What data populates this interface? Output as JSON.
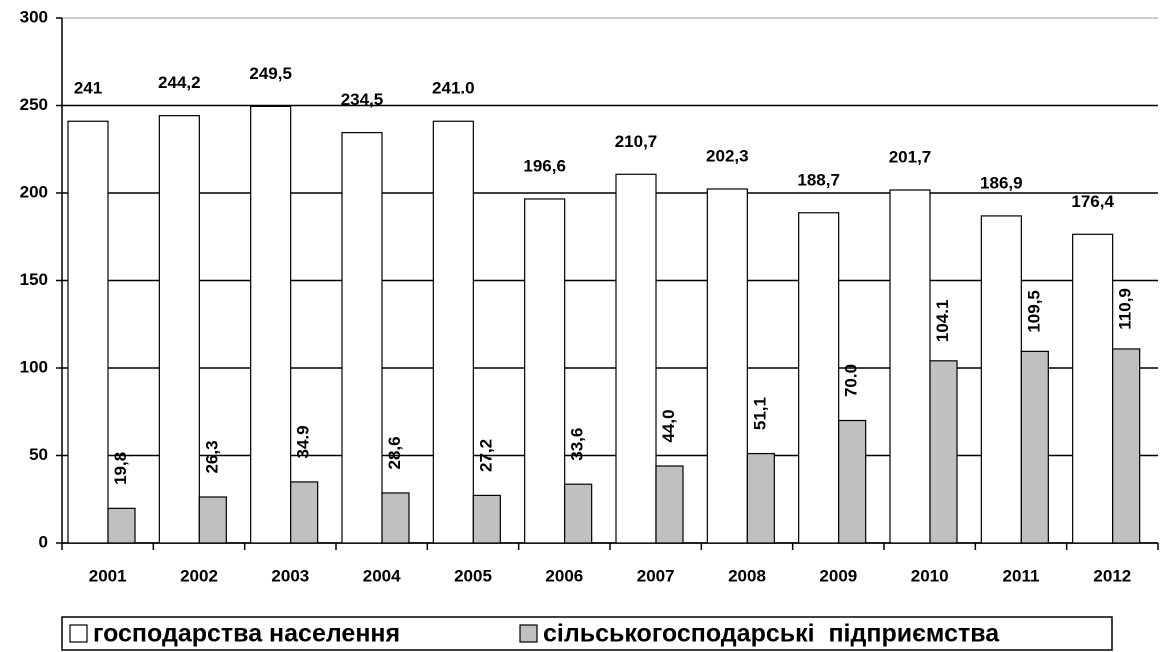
{
  "chart_data": {
    "type": "bar",
    "categories": [
      "2001",
      "2002",
      "2003",
      "2004",
      "2005",
      "2006",
      "2007",
      "2008",
      "2009",
      "2010",
      "2011",
      "2012"
    ],
    "series": [
      {
        "name": "господарства населення",
        "color": "#ffffff",
        "values": [
          241,
          244.2,
          249.5,
          234.5,
          241.0,
          196.6,
          210.7,
          202.3,
          188.7,
          201.7,
          186.9,
          176.4
        ],
        "value_labels": [
          "241",
          "244,2",
          "249,5",
          "234,5",
          "241.0",
          "196,6",
          "210,7",
          "202,3",
          "188,7",
          "201,7",
          "186,9",
          "176,4"
        ]
      },
      {
        "name": "сільськогосподарські  підприємства",
        "color": "#c0c0c0",
        "values": [
          19.8,
          26.3,
          34.9,
          28.6,
          27.2,
          33.6,
          44.0,
          51.1,
          70.0,
          104.1,
          109.5,
          110.9
        ],
        "value_labels": [
          "19,8",
          "26,3",
          "34.9",
          "28,6",
          "27,2",
          "33,6",
          "44,0",
          "51,1",
          "70.0",
          "104.1",
          "109,5",
          "110,9"
        ]
      }
    ],
    "ylim": [
      0,
      300
    ],
    "yticks": [
      0,
      50,
      100,
      150,
      200,
      250,
      300
    ],
    "grid": true,
    "legend": "bottom"
  }
}
